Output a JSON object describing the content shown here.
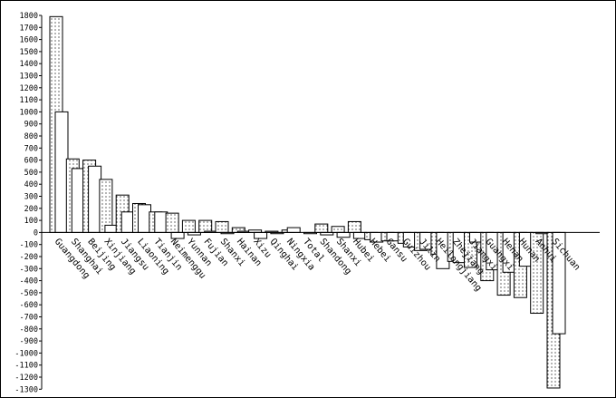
{
  "chart_data": {
    "type": "bar",
    "title": "",
    "xlabel": "",
    "ylabel": "",
    "ylim": [
      -1300,
      1800
    ],
    "ytick_step": 100,
    "grid": false,
    "legend": "none",
    "categories": [
      "Guangdong",
      "Shanghai",
      "Beijing",
      "Xinjiang",
      "Jiangsu",
      "Liaoning",
      "Tianjin",
      "Neimenggu",
      "Yunnan",
      "Fujian",
      "Shanxi",
      "Hainan",
      "Xizu",
      "Qinghai",
      "Ningxia",
      "Total",
      "Shandong",
      "Shanxi",
      "Hubei",
      "Hebei",
      "Gansu",
      "Guizhou",
      "Jilin",
      "Heilongjiang",
      "Zhejiang",
      "Jiangxi",
      "Guangxi",
      "Henan",
      "Hunan",
      "Anhui",
      "Sichuan"
    ],
    "series": [
      {
        "values": [
          1790,
          610,
          600,
          440,
          310,
          240,
          170,
          160,
          100,
          100,
          90,
          40,
          20,
          10,
          20,
          0,
          70,
          50,
          90,
          -60,
          -70,
          -90,
          -150,
          -180,
          -240,
          -290,
          -400,
          -520,
          -540,
          -670,
          -1290
        ],
        "pattern": "dotted"
      },
      {
        "values": [
          1000,
          530,
          550,
          60,
          170,
          230,
          170,
          -50,
          -20,
          10,
          -10,
          10,
          -50,
          -10,
          40,
          -10,
          -20,
          -40,
          -50,
          -80,
          -70,
          -120,
          -140,
          -300,
          -250,
          -80,
          -310,
          -330,
          -280,
          -10,
          -840
        ],
        "pattern": "plain"
      }
    ],
    "colors": {
      "dotted_fill": "#ffffff",
      "dot_color": "#000000",
      "plain_fill": "#ffffff",
      "stroke": "#000000"
    }
  }
}
